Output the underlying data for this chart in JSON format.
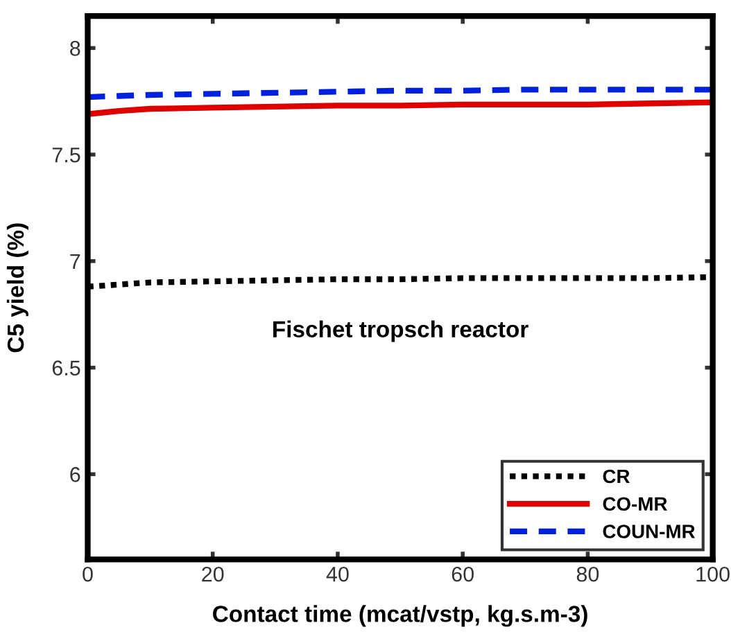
{
  "chart_data": {
    "type": "line",
    "xlabel": "Contact time (mcat/vstp, kg.s.m-3)",
    "ylabel": "C5 yield (%)",
    "annotations": [
      "Fischet tropsch reactor"
    ],
    "x": [
      0,
      5,
      10,
      20,
      30,
      40,
      50,
      60,
      70,
      80,
      90,
      100
    ],
    "series": [
      {
        "name": "CR",
        "color": "#000000",
        "line_style": "dotted",
        "values": [
          6.88,
          6.89,
          6.9,
          6.905,
          6.91,
          6.915,
          6.915,
          6.92,
          6.92,
          6.92,
          6.92,
          6.925
        ]
      },
      {
        "name": "CO-MR",
        "color": "#e00000",
        "line_style": "solid",
        "values": [
          7.69,
          7.705,
          7.715,
          7.72,
          7.725,
          7.73,
          7.73,
          7.735,
          7.735,
          7.735,
          7.74,
          7.745
        ]
      },
      {
        "name": "COUN-MR",
        "color": "#0020e0",
        "line_style": "dashed",
        "values": [
          7.77,
          7.775,
          7.78,
          7.785,
          7.79,
          7.795,
          7.8,
          7.8,
          7.805,
          7.805,
          7.805,
          7.805
        ]
      }
    ],
    "xlim": [
      0,
      100
    ],
    "xticks": [
      0,
      20,
      40,
      60,
      80,
      100
    ],
    "ylim": [
      5.6,
      8.15
    ],
    "yticks": [
      6,
      6.5,
      7,
      7.5,
      8
    ],
    "grid": false,
    "legend": "bottom right",
    "marker": "none"
  }
}
